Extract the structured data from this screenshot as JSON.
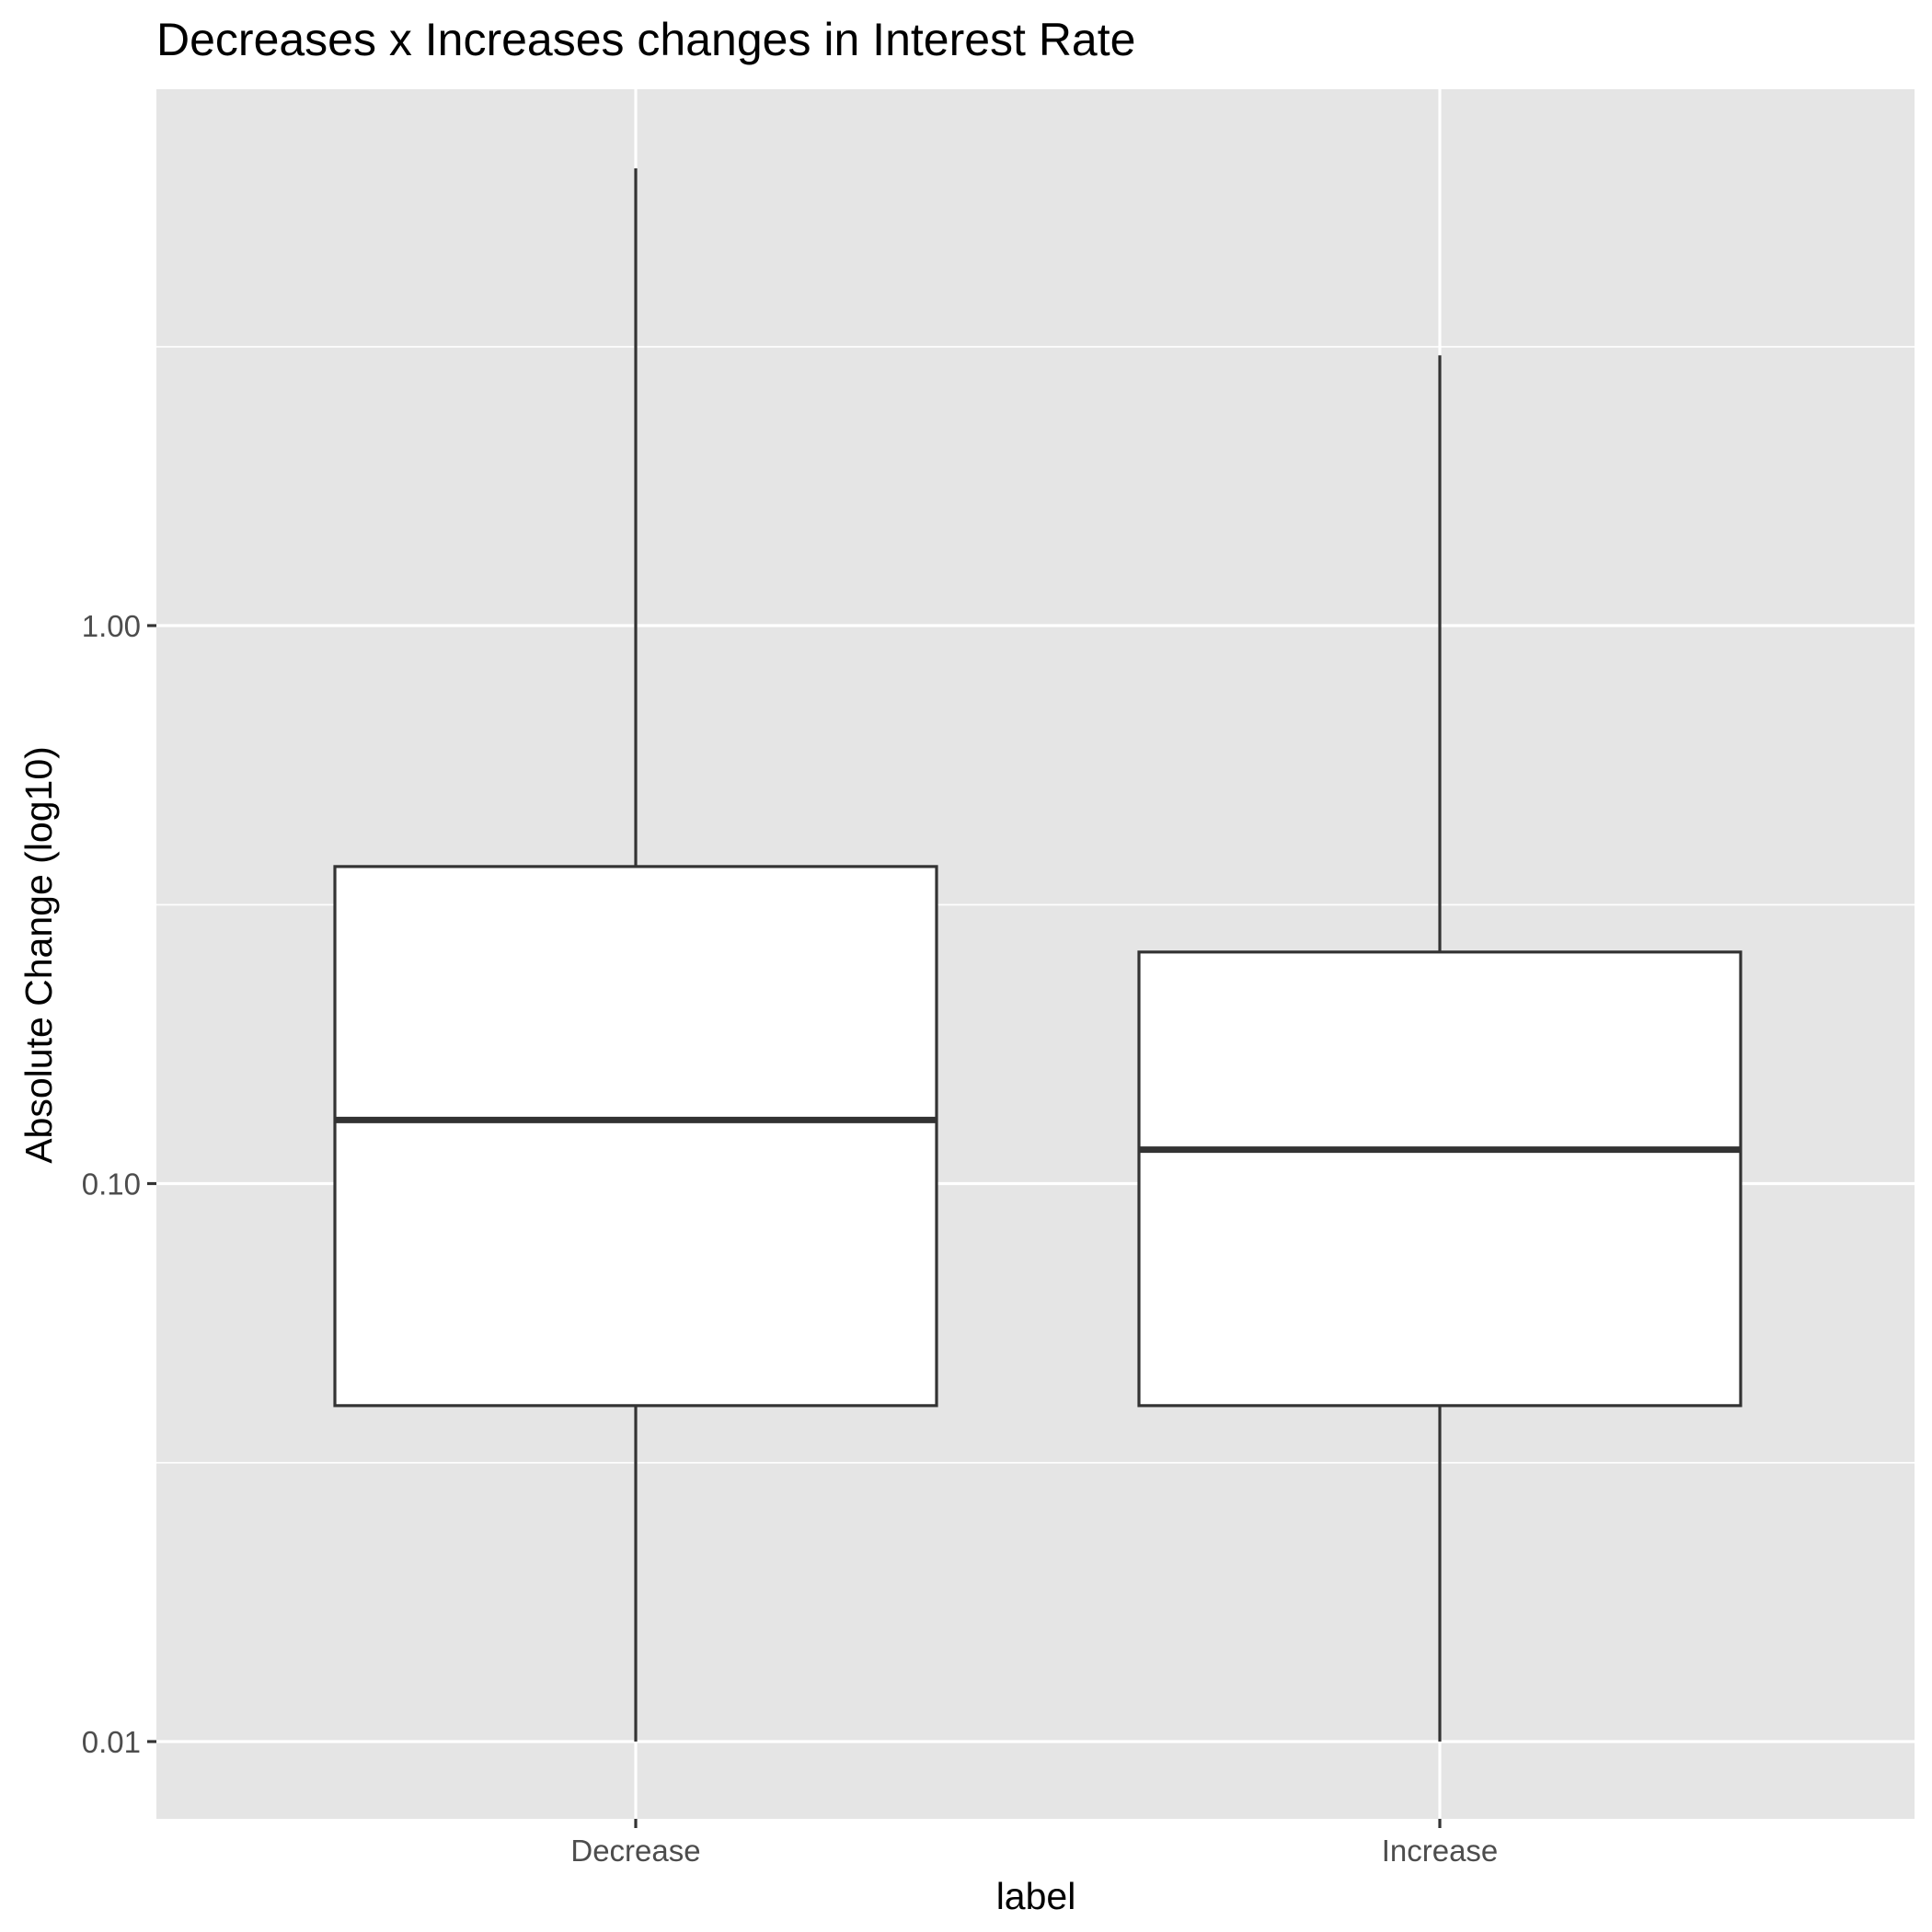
{
  "chart_data": {
    "type": "boxplot",
    "title": "Decreases x Increases changes in Interest Rate",
    "xlabel": "label",
    "ylabel": "Absolute Change (log10)",
    "y_scale": "log10",
    "ylim": [
      0.0075,
      6.4
    ],
    "y_ticks": [
      {
        "value": 0.01,
        "label": "0.01"
      },
      {
        "value": 0.1,
        "label": "0.10"
      },
      {
        "value": 1,
        "label": "1.00"
      }
    ],
    "y_minor_gridlines": [
      0.0316,
      0.316,
      3.16
    ],
    "categories": [
      "Decrease",
      "Increase"
    ],
    "boxes": [
      {
        "category": "Decrease",
        "whisker_low": 0.01,
        "q1": 0.04,
        "median": 0.13,
        "q3": 0.37,
        "whisker_high": 6.6
      },
      {
        "category": "Increase",
        "whisker_low": 0.01,
        "q1": 0.04,
        "median": 0.115,
        "q3": 0.26,
        "whisker_high": 3.05
      }
    ],
    "grid": true,
    "legend": "none",
    "colors": {
      "panel_background": "#e5e5e5",
      "gridline": "#ffffff",
      "box_fill": "#ffffff",
      "box_stroke": "#333333",
      "tick_mark": "#333333"
    }
  }
}
